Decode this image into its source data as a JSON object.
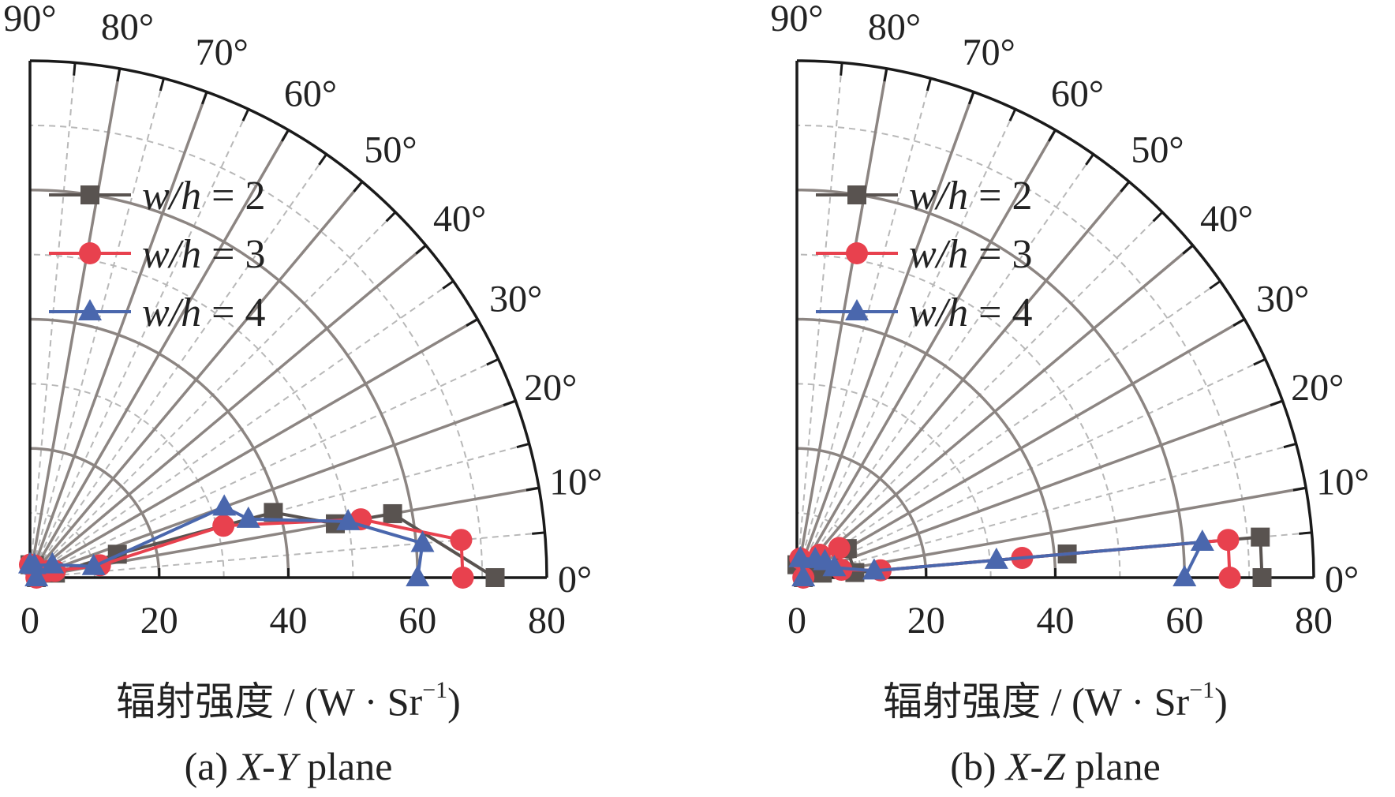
{
  "chart_data": [
    {
      "type": "polar-line",
      "panel": "a",
      "caption_prefix": "(a) ",
      "caption_axes": "X-Y",
      "caption_suffix": " plane",
      "xlabel": "辐射强度 / (W · Sr",
      "xlabel_sup": "−1",
      "xlabel_close": ")",
      "radial_range": [
        0,
        80
      ],
      "radial_ticks": [
        "0",
        "20",
        "40",
        "60",
        "80"
      ],
      "angle_range_deg": [
        0,
        90
      ],
      "angle_ticks": [
        "0°",
        "10°",
        "20°",
        "30°",
        "40°",
        "50°",
        "60°",
        "70°",
        "80°",
        "90°"
      ],
      "grid": true,
      "legend": "upper-left",
      "series": [
        {
          "name": "w/h = 2",
          "name_italic": "w/h",
          "name_rest": " = 2",
          "color": "#595350",
          "marker": "square",
          "points": [
            [
              0,
              72
            ],
            [
              10,
              57
            ],
            [
              10,
              48
            ],
            [
              15,
              39
            ],
            [
              15,
              14
            ],
            [
              10,
              4
            ],
            [
              20,
              3
            ],
            [
              70,
              2
            ],
            [
              90,
              2
            ],
            [
              0,
              1
            ]
          ]
        },
        {
          "name": "w/h = 3",
          "name_italic": "w/h",
          "name_rest": " = 3",
          "color": "#e8414e",
          "marker": "circle",
          "points": [
            [
              0,
              67
            ],
            [
              5,
              67
            ],
            [
              10,
              52
            ],
            [
              15,
              31
            ],
            [
              10,
              11
            ],
            [
              15,
              4
            ],
            [
              20,
              3
            ],
            [
              70,
              2
            ],
            [
              90,
              2
            ],
            [
              0,
              1
            ]
          ]
        },
        {
          "name": "w/h = 4",
          "name_italic": "w/h",
          "name_rest": " = 4",
          "color": "#4a67ad",
          "marker": "triangle",
          "points": [
            [
              0,
              60
            ],
            [
              5,
              61
            ],
            [
              10,
              50
            ],
            [
              15,
              35
            ],
            [
              20,
              32
            ],
            [
              10,
              10
            ],
            [
              30,
              4
            ],
            [
              70,
              2
            ],
            [
              90,
              2
            ],
            [
              0,
              1
            ]
          ]
        }
      ]
    },
    {
      "type": "polar-line",
      "panel": "b",
      "caption_prefix": "(b) ",
      "caption_axes": "X-Z",
      "caption_suffix": " plane",
      "xlabel": "辐射强度 / (W · Sr",
      "xlabel_sup": "−1",
      "xlabel_close": ")",
      "radial_range": [
        0,
        80
      ],
      "radial_ticks": [
        "0",
        "20",
        "40",
        "60",
        "80"
      ],
      "angle_range_deg": [
        0,
        90
      ],
      "angle_ticks": [
        "0°",
        "10°",
        "20°",
        "30°",
        "40°",
        "50°",
        "60°",
        "70°",
        "80°",
        "90°"
      ],
      "grid": true,
      "legend": "upper-left",
      "series": [
        {
          "name": "w/h = 2",
          "name_italic": "w/h",
          "name_rest": " = 2",
          "color": "#595350",
          "marker": "square",
          "points": [
            [
              0,
              72
            ],
            [
              5,
              72
            ],
            [
              5,
              42
            ],
            [
              5,
              9
            ],
            [
              30,
              9
            ],
            [
              10,
              4
            ],
            [
              50,
              3
            ],
            [
              90,
              2
            ],
            [
              0,
              1
            ]
          ]
        },
        {
          "name": "w/h = 3",
          "name_italic": "w/h",
          "name_rest": " = 3",
          "color": "#e8414e",
          "marker": "circle",
          "points": [
            [
              0,
              67
            ],
            [
              5,
              67
            ],
            [
              5,
              35
            ],
            [
              5,
              13
            ],
            [
              10,
              7
            ],
            [
              35,
              8
            ],
            [
              45,
              5
            ],
            [
              80,
              3
            ],
            [
              0,
              1
            ]
          ]
        },
        {
          "name": "w/h = 4",
          "name_italic": "w/h",
          "name_rest": " = 4",
          "color": "#4a67ad",
          "marker": "triangle",
          "points": [
            [
              0,
              60
            ],
            [
              5,
              63
            ],
            [
              5,
              31
            ],
            [
              5,
              12
            ],
            [
              15,
              6
            ],
            [
              30,
              5
            ],
            [
              45,
              4
            ],
            [
              80,
              3
            ],
            [
              0,
              1
            ]
          ]
        }
      ]
    }
  ]
}
